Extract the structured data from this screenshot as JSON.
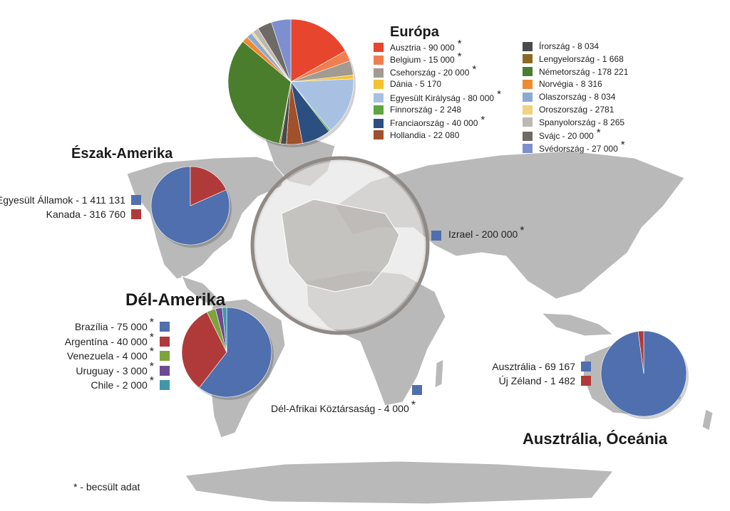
{
  "footnote": "* - becsült adat",
  "chart_data": [
    {
      "type": "pie",
      "title": "Európa",
      "categories": [
        "Ausztria",
        "Belgium",
        "Csehország",
        "Dánia",
        "Egyesült Királyság",
        "Finnország",
        "Franciaország",
        "Hollandia",
        "Írország",
        "Lengyelország",
        "Németország",
        "Norvégia",
        "Olaszország",
        "Oroszország",
        "Spanyolország",
        "Svájc",
        "Svédország"
      ],
      "labels": [
        "Ausztria - 90 000",
        "Belgium - 15 000",
        "Csehország - 20 000",
        "Dánia - 5 170",
        "Egyesült Királyság - 80 000",
        "Finnország - 2 248",
        "Franciaország - 40 000",
        "Hollandia - 22 080",
        "Írország - 8 034",
        "Lengyelország - 1 668",
        "Németország - 178 221",
        "Norvégia - 8 316",
        "Olaszország - 8 034",
        "Oroszország - 2781",
        "Spanyolország - 8 265",
        "Svájc - 20 000",
        "Svédország - 27 000"
      ],
      "values": [
        90000,
        15000,
        20000,
        5170,
        80000,
        2248,
        40000,
        22080,
        8034,
        1668,
        178221,
        8316,
        8034,
        2781,
        8265,
        20000,
        27000
      ],
      "estimated": [
        true,
        true,
        true,
        false,
        true,
        false,
        true,
        false,
        false,
        false,
        false,
        false,
        false,
        false,
        false,
        true,
        true
      ],
      "colors": [
        "#e8452e",
        "#f07f4f",
        "#a39a91",
        "#f5c232",
        "#a8c1e2",
        "#5fa63d",
        "#2c4f82",
        "#a0502a",
        "#4a4a4a",
        "#8a6a22",
        "#4a7e2c",
        "#ee8a30",
        "#8aaad2",
        "#f2d27a",
        "#bdb8b1",
        "#6e6a66",
        "#7e8fcf"
      ],
      "legend_placement": "right"
    },
    {
      "type": "pie",
      "title": "Észak-Amerika",
      "categories": [
        "Egyesült Államok",
        "Kanada"
      ],
      "labels": [
        "Egyesült Államok - 1 411 131",
        "Kanada - 316 760"
      ],
      "values": [
        1411131,
        316760
      ],
      "estimated": [
        false,
        false
      ],
      "colors": [
        "#4f6fae",
        "#b03a3a"
      ],
      "legend_placement": "left"
    },
    {
      "type": "pie",
      "title": "Dél-Amerika",
      "categories": [
        "Brazília",
        "Argentína",
        "Venezuela",
        "Uruguay",
        "Chile"
      ],
      "labels": [
        "Brazília - 75 000",
        "Argentína - 40 000",
        "Venezuela - 4 000",
        "Uruguay - 3 000",
        "Chile - 2 000"
      ],
      "values": [
        75000,
        40000,
        4000,
        3000,
        2000
      ],
      "estimated": [
        true,
        true,
        true,
        true,
        true
      ],
      "colors": [
        "#4f6fae",
        "#b03a3a",
        "#7ea33b",
        "#6c4b94",
        "#3e98a8"
      ],
      "legend_placement": "left"
    },
    {
      "type": "pie",
      "title": "Ausztrália, Óceánia",
      "categories": [
        "Ausztrália",
        "Új Zéland"
      ],
      "labels": [
        "Ausztrália - 69 167",
        "Új Zéland - 1 482"
      ],
      "values": [
        69167,
        1482
      ],
      "estimated": [
        false,
        false
      ],
      "colors": [
        "#4f6fae",
        "#b03a3a"
      ],
      "legend_placement": "left"
    }
  ],
  "points": [
    {
      "label": "Izrael - 200 000",
      "value": 200000,
      "estimated": true,
      "color": "#4f6fae"
    },
    {
      "label": "Dél-Afrikai Köztársaság - 4 000",
      "value": 4000,
      "estimated": true,
      "color": "#4f6fae"
    }
  ]
}
